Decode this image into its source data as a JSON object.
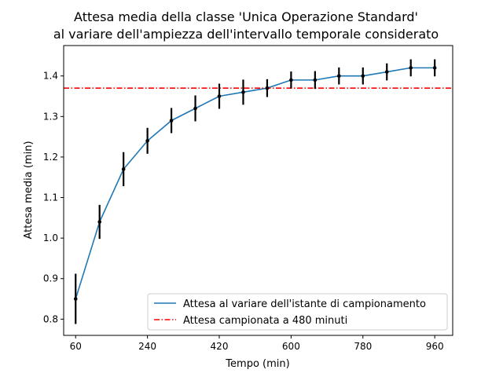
{
  "chart_data": {
    "type": "line",
    "title": [
      "Attesa media della classe 'Unica Operazione Standard'",
      "al variare dell'ampiezza dell'intervallo temporale considerato"
    ],
    "xlabel": "Tempo (min)",
    "ylabel": "Attesa media (min)",
    "xlim": [
      30,
      1005
    ],
    "ylim": [
      0.76,
      1.475
    ],
    "xticks": [
      60,
      240,
      420,
      600,
      780,
      960
    ],
    "yticks": [
      0.8,
      0.9,
      1.0,
      1.1,
      1.2,
      1.3,
      1.4
    ],
    "grid": false,
    "legend_position": "lower-right",
    "series": [
      {
        "name": "Attesa al variare dell'istante di campionamento",
        "color": "#1f77b4",
        "x": [
          60,
          120,
          180,
          240,
          300,
          360,
          420,
          480,
          540,
          600,
          660,
          720,
          780,
          840,
          900,
          960
        ],
        "y": [
          0.85,
          1.04,
          1.17,
          1.24,
          1.29,
          1.32,
          1.35,
          1.36,
          1.37,
          1.39,
          1.39,
          1.4,
          1.4,
          1.41,
          1.42,
          1.42
        ],
        "error": [
          0.062,
          0.042,
          0.042,
          0.032,
          0.031,
          0.032,
          0.031,
          0.031,
          0.022,
          0.021,
          0.022,
          0.021,
          0.021,
          0.021,
          0.021,
          0.021
        ]
      }
    ],
    "reference_line": {
      "name": "Attesa campionata a 480 minuti",
      "y": 1.37,
      "color": "#ff0000",
      "style": "dash-dot"
    }
  }
}
